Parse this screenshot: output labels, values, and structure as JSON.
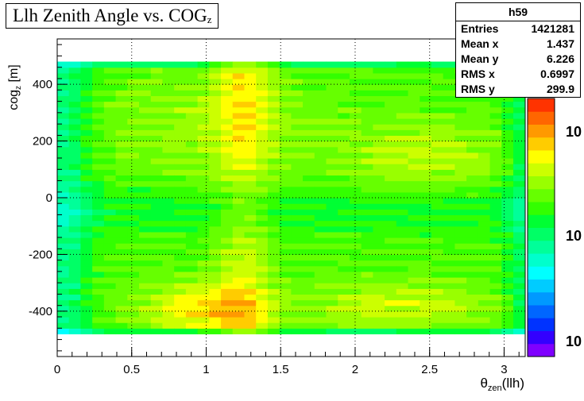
{
  "chart_data": {
    "type": "heatmap",
    "title": "Llh Zenith Angle vs. COG",
    "title_subscript": "z",
    "xlabel": "θ",
    "xlabel_subscript": "zen",
    "xlabel_suffix": "(llh)",
    "ylabel": "cog",
    "ylabel_subscript": "z",
    "ylabel_suffix": " [m]",
    "xlim": [
      0,
      3.1416
    ],
    "ylim": [
      -560,
      560
    ],
    "x_ticks": [
      0,
      0.5,
      1,
      1.5,
      2,
      2.5,
      3
    ],
    "x_tick_labels": [
      "0",
      "0.5",
      "1",
      "1.5",
      "2",
      "2.5",
      "3"
    ],
    "y_ticks": [
      -400,
      -200,
      0,
      200,
      400
    ],
    "y_tick_labels": [
      "-400",
      "-200",
      "0",
      "200",
      "400"
    ],
    "grid": true,
    "color_scale": "log",
    "color_axis_labels": [
      "10",
      "10",
      "10"
    ],
    "palette": [
      "#7f00ff",
      "#3300ff",
      "#0033ff",
      "#0066ff",
      "#0099ff",
      "#00ccff",
      "#00ffff",
      "#00ffcc",
      "#00ff99",
      "#00ff66",
      "#00ff33",
      "#33ff00",
      "#66ff00",
      "#99ff00",
      "#ccff00",
      "#ffff00",
      "#ffcc00",
      "#ff9900",
      "#ff6600",
      "#ff3300"
    ],
    "cell_size": {
      "x": 0.0785,
      "y": 20
    },
    "y_range_filled": [
      -480,
      480
    ]
  },
  "stats": {
    "name": "h59",
    "rows": [
      {
        "label": "Entries",
        "value": "1421281"
      },
      {
        "label": "Mean x",
        "value": "1.437"
      },
      {
        "label": "Mean y",
        "value": "6.226"
      },
      {
        "label": "RMS x",
        "value": "0.6997"
      },
      {
        "label": "RMS y",
        "value": "299.9"
      }
    ]
  }
}
